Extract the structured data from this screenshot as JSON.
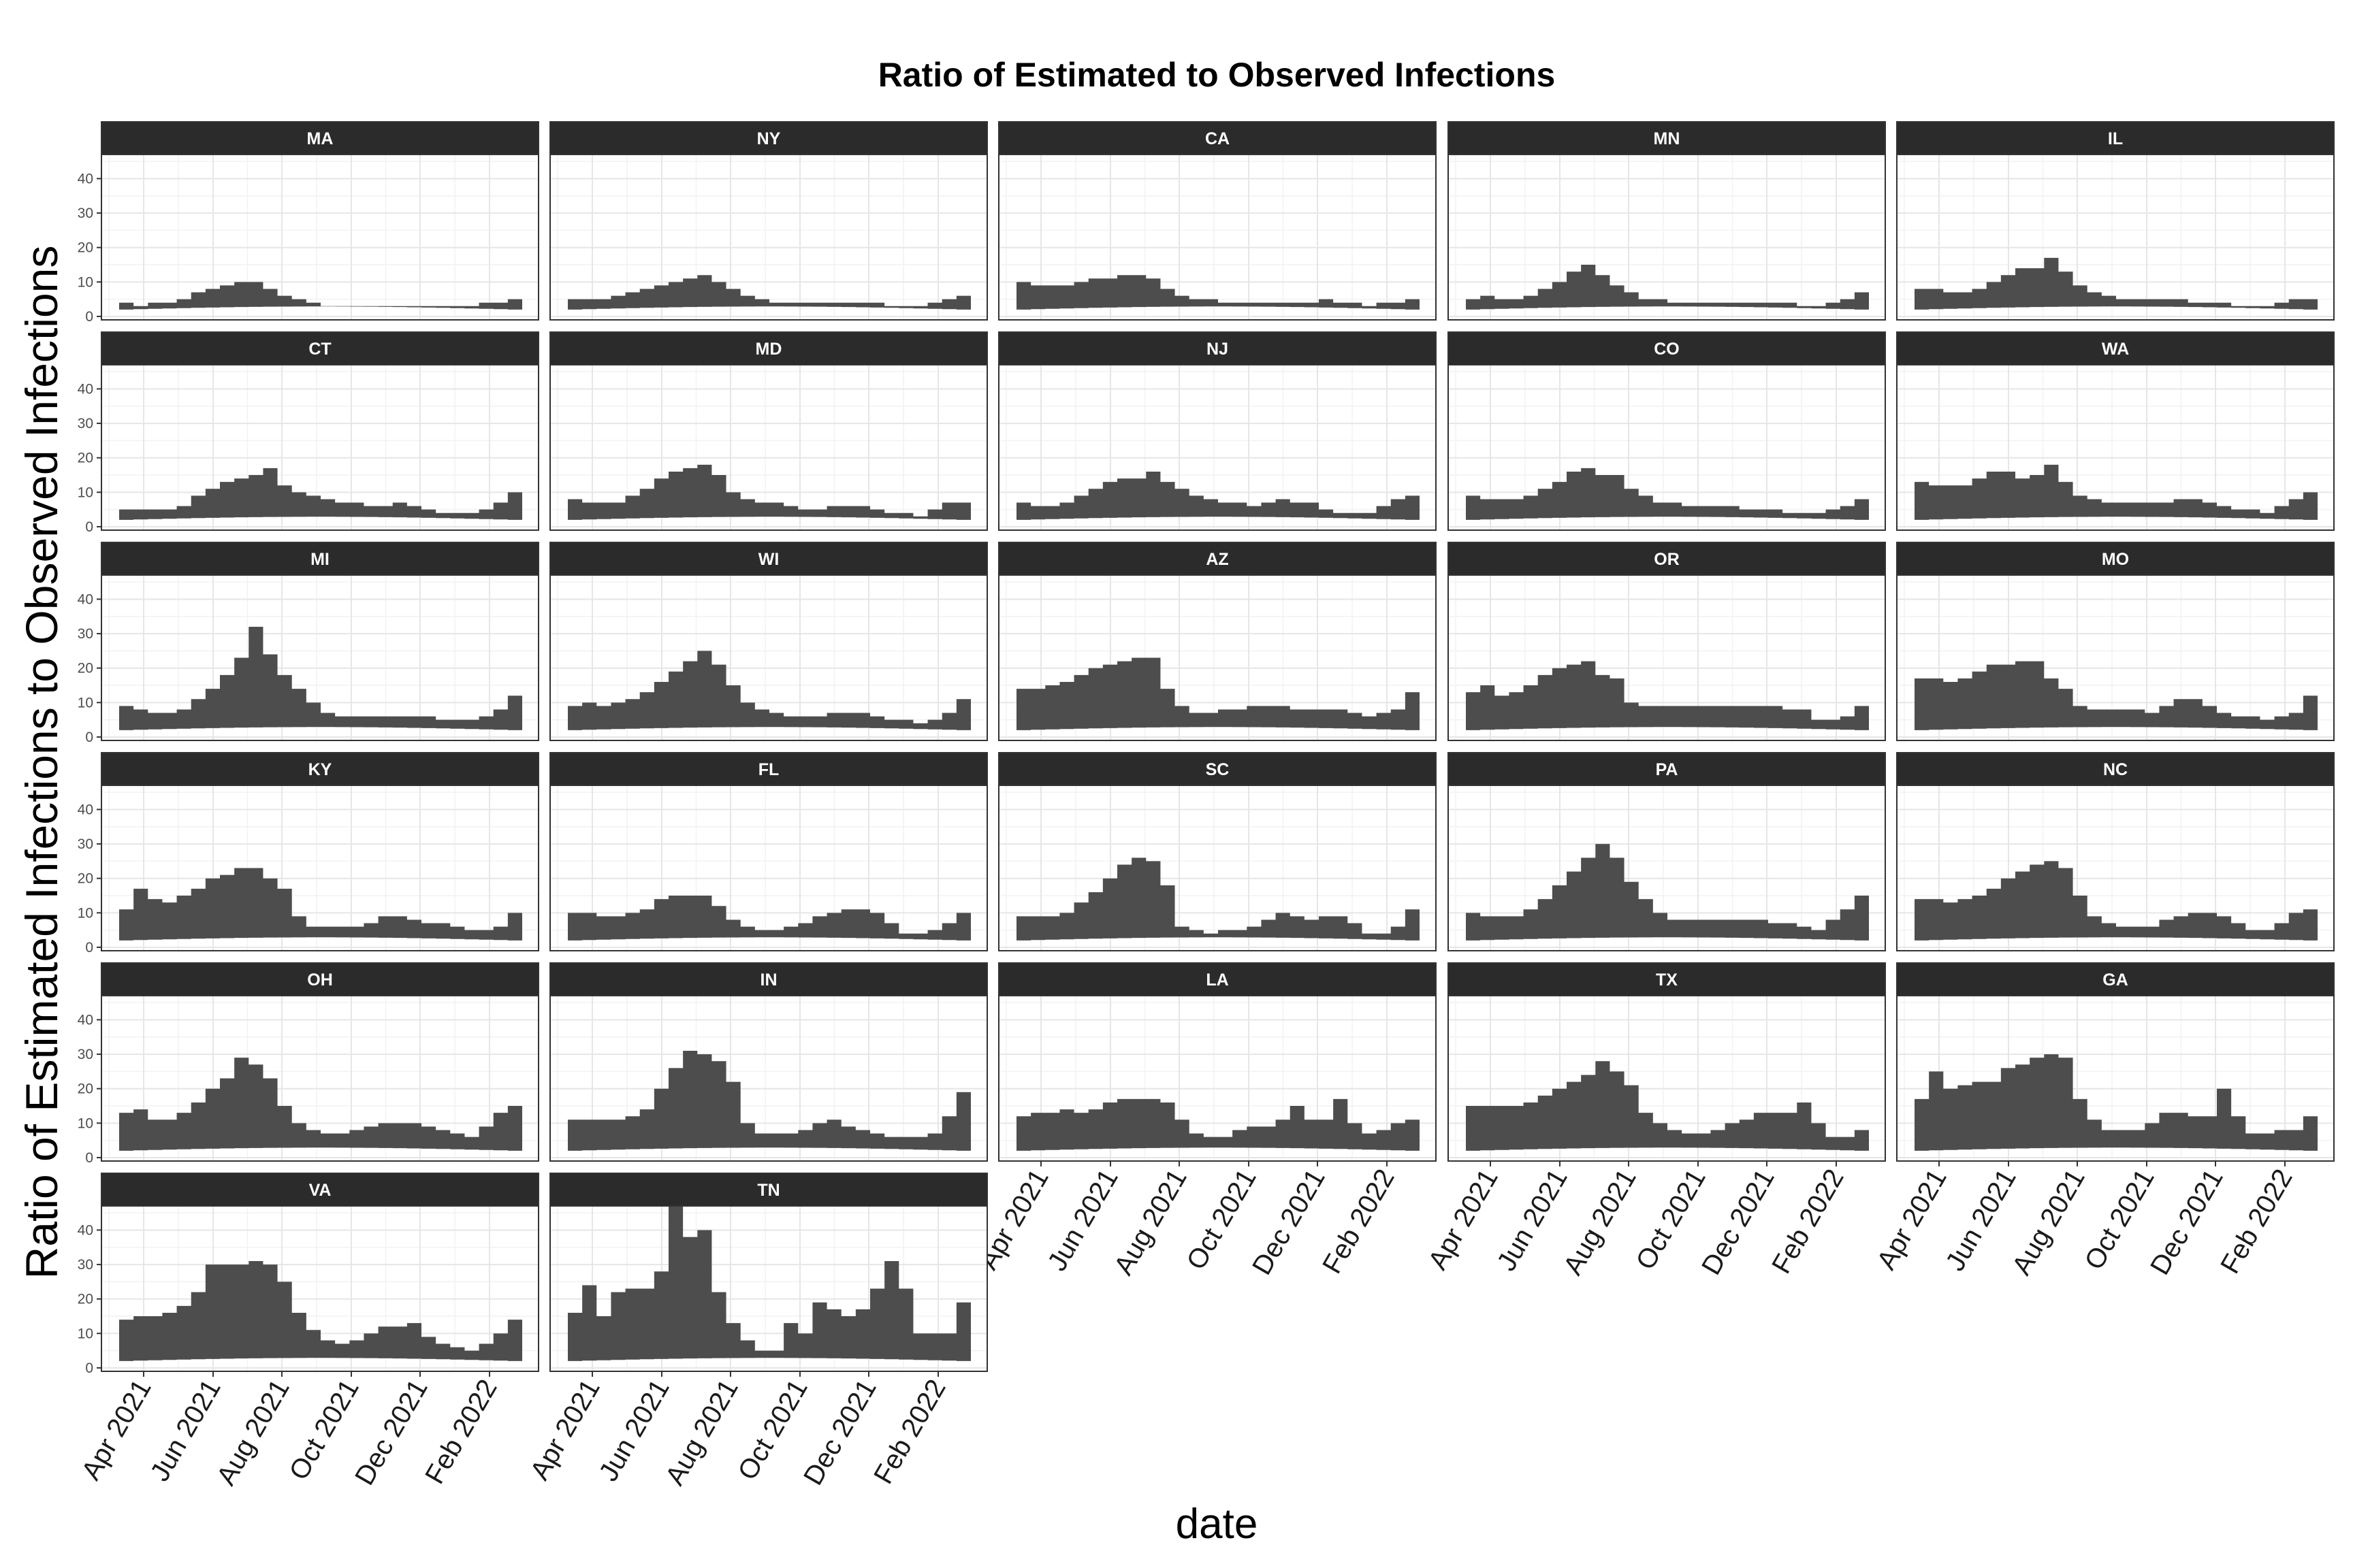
{
  "chart_data": {
    "type": "area",
    "title": "Ratio of Estimated to Observed Infections",
    "xlabel": "date",
    "ylabel": "Ratio of Estimated Infections to Observed Infections",
    "x_tick_labels": [
      "Apr 2021",
      "Jun 2021",
      "Aug 2021",
      "Oct 2021",
      "Dec 2021",
      "Feb 2022"
    ],
    "y_ticks": [
      0,
      10,
      20,
      30,
      40
    ],
    "ylim": [
      -1,
      47
    ],
    "grid": true,
    "facet_layout": "5 columns, 6 rows",
    "fill_color": "#4d4d4d",
    "strip_color": "#2b2b2b",
    "x_periods": 28,
    "note_lower": "lower bound is about 2 for all states",
    "states": [
      {
        "name": "MA",
        "upper": [
          4,
          3,
          4,
          4,
          5,
          7,
          8,
          9,
          10,
          10,
          8,
          6,
          5,
          4,
          3,
          3,
          3,
          3,
          3,
          3,
          3,
          3,
          3,
          3,
          3,
          4,
          4,
          5
        ]
      },
      {
        "name": "NY",
        "upper": [
          5,
          5,
          5,
          6,
          7,
          8,
          9,
          10,
          11,
          12,
          10,
          8,
          6,
          5,
          4,
          4,
          4,
          4,
          4,
          4,
          4,
          4,
          3,
          3,
          3,
          4,
          5,
          6
        ]
      },
      {
        "name": "CA",
        "upper": [
          10,
          9,
          9,
          9,
          10,
          11,
          11,
          12,
          12,
          11,
          8,
          6,
          5,
          5,
          4,
          4,
          4,
          4,
          4,
          4,
          4,
          5,
          4,
          4,
          3,
          4,
          4,
          5
        ]
      },
      {
        "name": "MN",
        "upper": [
          5,
          6,
          5,
          5,
          6,
          8,
          10,
          13,
          15,
          12,
          9,
          7,
          5,
          5,
          4,
          4,
          4,
          4,
          4,
          4,
          4,
          4,
          4,
          3,
          3,
          4,
          5,
          7
        ]
      },
      {
        "name": "IL",
        "upper": [
          8,
          8,
          7,
          7,
          8,
          10,
          12,
          14,
          14,
          17,
          13,
          9,
          7,
          6,
          5,
          5,
          5,
          5,
          5,
          4,
          4,
          4,
          3,
          3,
          3,
          4,
          5,
          5
        ]
      },
      {
        "name": "CT",
        "upper": [
          5,
          5,
          5,
          5,
          6,
          9,
          11,
          13,
          14,
          15,
          17,
          12,
          10,
          9,
          8,
          7,
          7,
          6,
          6,
          7,
          6,
          5,
          4,
          4,
          4,
          5,
          7,
          10
        ]
      },
      {
        "name": "MD",
        "upper": [
          8,
          7,
          7,
          7,
          9,
          11,
          14,
          16,
          17,
          18,
          15,
          10,
          8,
          7,
          7,
          6,
          5,
          5,
          6,
          6,
          6,
          5,
          4,
          4,
          3,
          5,
          7,
          7
        ]
      },
      {
        "name": "NJ",
        "upper": [
          7,
          6,
          6,
          7,
          9,
          11,
          13,
          14,
          14,
          16,
          13,
          11,
          9,
          8,
          7,
          7,
          6,
          7,
          8,
          7,
          7,
          5,
          4,
          4,
          4,
          6,
          8,
          9
        ]
      },
      {
        "name": "CO",
        "upper": [
          9,
          8,
          8,
          8,
          9,
          11,
          13,
          16,
          17,
          15,
          15,
          11,
          9,
          7,
          7,
          6,
          6,
          6,
          6,
          5,
          5,
          5,
          4,
          4,
          4,
          5,
          6,
          8
        ]
      },
      {
        "name": "WA",
        "upper": [
          13,
          12,
          12,
          12,
          14,
          16,
          16,
          14,
          15,
          18,
          13,
          9,
          8,
          7,
          7,
          7,
          7,
          7,
          8,
          8,
          7,
          6,
          5,
          5,
          4,
          6,
          8,
          10
        ]
      },
      {
        "name": "MI",
        "upper": [
          9,
          8,
          7,
          7,
          8,
          11,
          14,
          18,
          23,
          32,
          24,
          18,
          14,
          10,
          7,
          6,
          6,
          6,
          6,
          6,
          6,
          6,
          5,
          5,
          5,
          6,
          8,
          12
        ]
      },
      {
        "name": "WI",
        "upper": [
          9,
          10,
          9,
          10,
          11,
          13,
          16,
          19,
          22,
          25,
          21,
          15,
          10,
          8,
          7,
          6,
          6,
          6,
          7,
          7,
          7,
          6,
          5,
          5,
          4,
          5,
          7,
          11
        ]
      },
      {
        "name": "AZ",
        "upper": [
          14,
          14,
          15,
          16,
          18,
          20,
          21,
          22,
          23,
          23,
          14,
          9,
          7,
          7,
          8,
          8,
          9,
          9,
          9,
          8,
          8,
          8,
          8,
          7,
          6,
          7,
          8,
          13
        ]
      },
      {
        "name": "OR",
        "upper": [
          13,
          15,
          12,
          13,
          15,
          18,
          20,
          21,
          22,
          18,
          17,
          10,
          9,
          9,
          9,
          9,
          9,
          9,
          9,
          9,
          9,
          9,
          8,
          8,
          5,
          5,
          6,
          9
        ]
      },
      {
        "name": "MO",
        "upper": [
          17,
          17,
          16,
          17,
          19,
          21,
          21,
          22,
          22,
          17,
          14,
          9,
          8,
          8,
          8,
          8,
          7,
          9,
          11,
          11,
          9,
          7,
          6,
          6,
          5,
          6,
          7,
          12
        ]
      },
      {
        "name": "KY",
        "upper": [
          11,
          17,
          14,
          13,
          15,
          17,
          20,
          21,
          23,
          23,
          20,
          17,
          9,
          6,
          6,
          6,
          6,
          7,
          9,
          9,
          8,
          7,
          7,
          6,
          5,
          5,
          6,
          10
        ]
      },
      {
        "name": "FL",
        "upper": [
          10,
          10,
          9,
          9,
          10,
          11,
          14,
          15,
          15,
          15,
          12,
          8,
          6,
          5,
          5,
          6,
          7,
          9,
          10,
          11,
          11,
          10,
          7,
          4,
          4,
          5,
          7,
          10
        ]
      },
      {
        "name": "SC",
        "upper": [
          9,
          9,
          9,
          10,
          13,
          16,
          20,
          24,
          26,
          25,
          18,
          6,
          5,
          4,
          5,
          5,
          6,
          8,
          10,
          9,
          8,
          9,
          9,
          7,
          4,
          4,
          6,
          11
        ]
      },
      {
        "name": "PA",
        "upper": [
          10,
          9,
          9,
          9,
          11,
          14,
          18,
          22,
          26,
          30,
          26,
          19,
          14,
          10,
          8,
          8,
          8,
          8,
          8,
          8,
          8,
          7,
          7,
          6,
          5,
          8,
          11,
          15
        ]
      },
      {
        "name": "NC",
        "upper": [
          14,
          14,
          13,
          14,
          15,
          17,
          20,
          22,
          24,
          25,
          23,
          15,
          9,
          7,
          6,
          6,
          6,
          8,
          9,
          10,
          10,
          9,
          7,
          5,
          5,
          7,
          10,
          11
        ]
      },
      {
        "name": "OH",
        "upper": [
          13,
          14,
          11,
          11,
          13,
          16,
          20,
          23,
          29,
          27,
          23,
          15,
          10,
          8,
          7,
          7,
          8,
          9,
          10,
          10,
          10,
          9,
          8,
          7,
          6,
          9,
          13,
          15
        ]
      },
      {
        "name": "IN",
        "upper": [
          11,
          11,
          11,
          11,
          12,
          14,
          20,
          26,
          31,
          30,
          28,
          22,
          10,
          7,
          7,
          7,
          8,
          10,
          11,
          9,
          8,
          7,
          6,
          6,
          6,
          7,
          12,
          19
        ]
      },
      {
        "name": "LA",
        "upper": [
          12,
          13,
          13,
          14,
          13,
          14,
          16,
          17,
          17,
          17,
          16,
          11,
          7,
          6,
          6,
          8,
          9,
          9,
          11,
          15,
          11,
          11,
          17,
          10,
          7,
          8,
          10,
          11
        ]
      },
      {
        "name": "TX",
        "upper": [
          15,
          15,
          15,
          15,
          16,
          18,
          20,
          22,
          24,
          28,
          25,
          21,
          13,
          10,
          8,
          7,
          7,
          8,
          10,
          11,
          13,
          13,
          13,
          16,
          10,
          6,
          6,
          8
        ]
      },
      {
        "name": "GA",
        "upper": [
          17,
          25,
          20,
          21,
          22,
          22,
          26,
          27,
          29,
          30,
          29,
          17,
          11,
          8,
          8,
          8,
          10,
          13,
          13,
          12,
          12,
          20,
          12,
          7,
          7,
          8,
          8,
          12
        ]
      },
      {
        "name": "VA",
        "upper": [
          14,
          15,
          15,
          16,
          18,
          22,
          30,
          30,
          30,
          31,
          30,
          25,
          16,
          11,
          8,
          7,
          8,
          10,
          12,
          12,
          13,
          9,
          7,
          6,
          5,
          7,
          10,
          14
        ]
      },
      {
        "name": "TN",
        "upper": [
          16,
          24,
          15,
          22,
          23,
          23,
          28,
          47,
          38,
          40,
          22,
          13,
          8,
          5,
          5,
          13,
          10,
          19,
          17,
          15,
          17,
          23,
          31,
          23,
          10,
          10,
          10,
          19
        ]
      }
    ]
  }
}
